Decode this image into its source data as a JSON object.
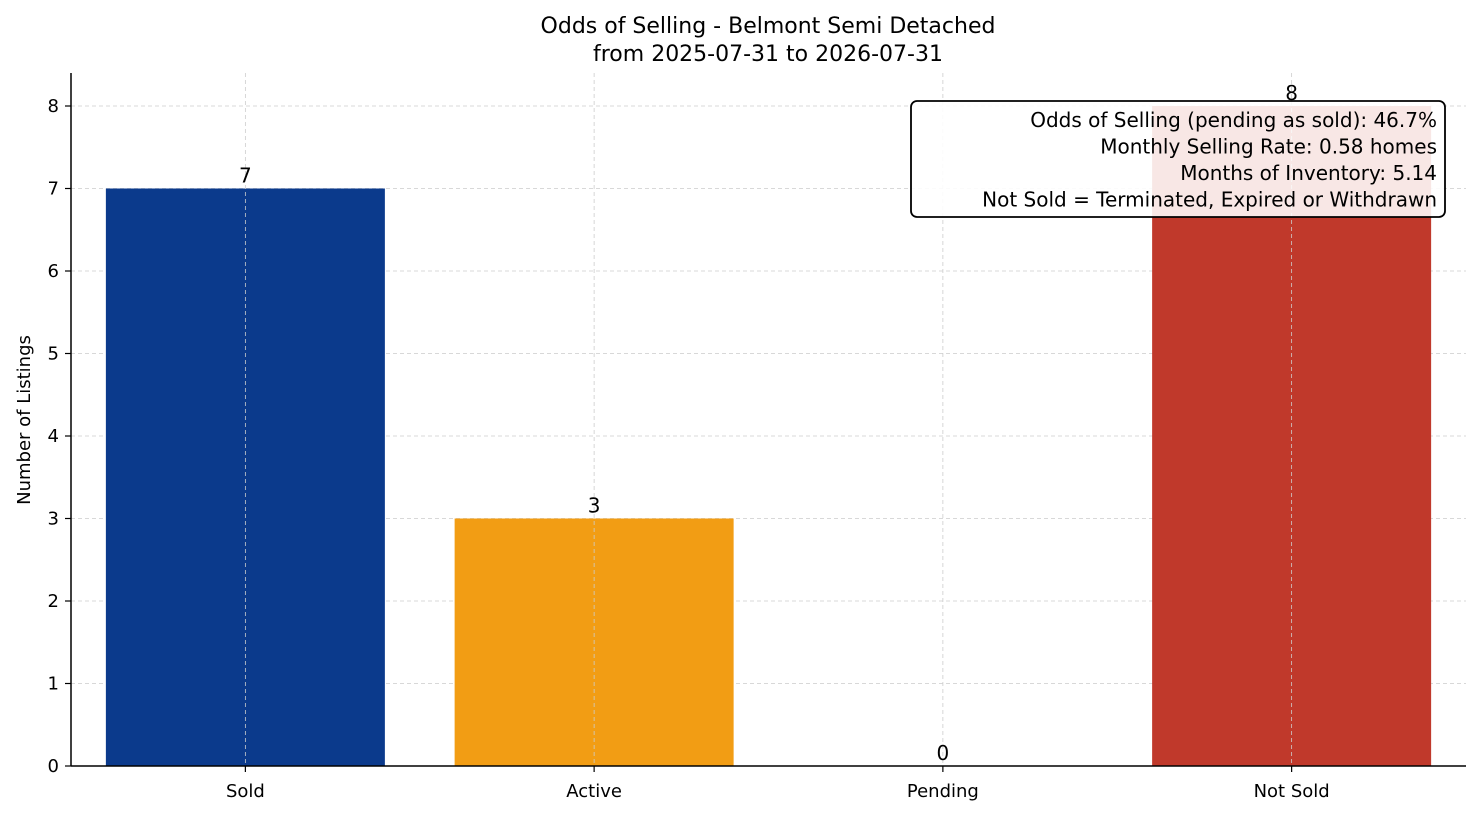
{
  "chart_data": {
    "type": "bar",
    "title": "Odds of Selling - Belmont Semi Detached",
    "subtitle": "from 2025-07-31 to 2026-07-31",
    "xlabel": "",
    "ylabel": "Number of Listings",
    "categories": [
      "Sold",
      "Active",
      "Pending",
      "Not Sold"
    ],
    "values": [
      7,
      3,
      0,
      8
    ],
    "colors": [
      "#0b3a8c",
      "#f29d14",
      "#2e8b57",
      "#c0392b"
    ],
    "ylim": [
      0,
      8.4
    ],
    "yticks": [
      0,
      1,
      2,
      3,
      4,
      5,
      6,
      7,
      8
    ],
    "grid": true,
    "annotation": {
      "placement": "top-right",
      "lines": [
        "Odds of Selling (pending as sold): 46.7%",
        "Monthly Selling Rate: 0.58 homes",
        "Months of Inventory: 5.14",
        "Not Sold = Terminated, Expired or Withdrawn"
      ]
    }
  }
}
